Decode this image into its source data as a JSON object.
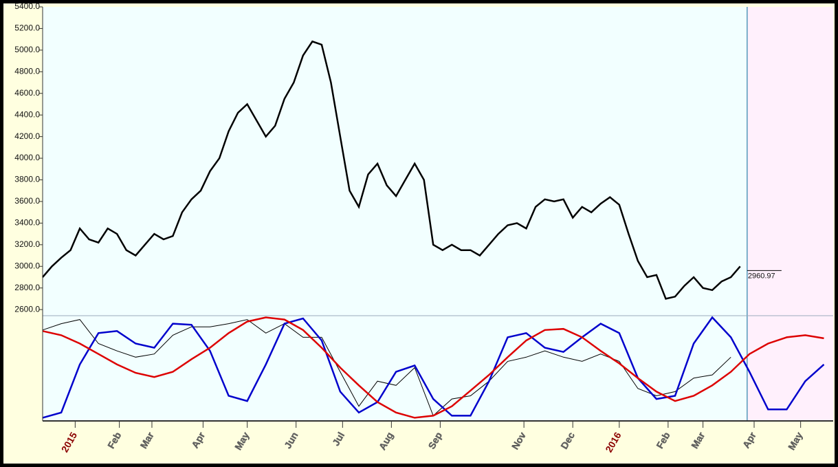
{
  "chart_data": [
    {
      "type": "line",
      "color": "#000000",
      "xlim": [
        0,
        340
      ],
      "ylim": [
        2550,
        5400
      ],
      "yticks": [
        {
          "value": 2600,
          "label": "2600.0"
        },
        {
          "value": 2800,
          "label": "2800.0"
        },
        {
          "value": 3000,
          "label": "3000.0"
        },
        {
          "value": 3200,
          "label": "3200.0"
        },
        {
          "value": 3400,
          "label": "3400.0"
        },
        {
          "value": 3600,
          "label": "3600.0"
        },
        {
          "value": 3800,
          "label": "3800.0"
        },
        {
          "value": 4000,
          "label": "4000.0"
        },
        {
          "value": 4200,
          "label": "4200.0"
        },
        {
          "value": 4400,
          "label": "4400.0"
        },
        {
          "value": 4600,
          "label": "4600.0"
        },
        {
          "value": 4800,
          "label": "4800.0"
        },
        {
          "value": 5000,
          "label": "5000.0"
        },
        {
          "value": 5200,
          "label": "5200.0"
        },
        {
          "value": 5400,
          "label": "5400.0"
        }
      ],
      "x": [
        0,
        4,
        8,
        12,
        16,
        20,
        24,
        28,
        32,
        36,
        40,
        44,
        48,
        52,
        56,
        60,
        64,
        68,
        72,
        76,
        80,
        84,
        88,
        92,
        96,
        100,
        104,
        108,
        112,
        116,
        120,
        124,
        128,
        132,
        136,
        140,
        144,
        148,
        152,
        156,
        160,
        164,
        168,
        172,
        176,
        180,
        184,
        188,
        192,
        196,
        200,
        204,
        208,
        212,
        216,
        220,
        224,
        228,
        232,
        236,
        240,
        244,
        248,
        252,
        256,
        260,
        264,
        268,
        272,
        276,
        280,
        284,
        288,
        292,
        296,
        300
      ],
      "values": [
        2900,
        3000,
        3080,
        3150,
        3350,
        3250,
        3220,
        3350,
        3300,
        3150,
        3100,
        3200,
        3300,
        3250,
        3280,
        3500,
        3620,
        3700,
        3880,
        4000,
        4250,
        4420,
        4500,
        4350,
        4200,
        4300,
        4550,
        4700,
        4950,
        5080,
        5050,
        4700,
        4200,
        3700,
        3550,
        3850,
        3950,
        3750,
        3650,
        3800,
        3950,
        3800,
        3200,
        3150,
        3200,
        3150,
        3150,
        3100,
        3200,
        3300,
        3380,
        3400,
        3350,
        3550,
        3620,
        3600,
        3620,
        3450,
        3550,
        3500,
        3580,
        3640,
        3570,
        3300,
        3050,
        2900,
        2920,
        2700,
        2720,
        2820,
        2900,
        2800,
        2780,
        2860,
        2900,
        3000
      ],
      "last_x": 303,
      "last_value": 2960.97
    },
    {
      "type": "line",
      "xlim": [
        0,
        340
      ],
      "ylim": [
        0,
        100
      ],
      "x": [
        0,
        8,
        16,
        24,
        32,
        40,
        48,
        56,
        64,
        72,
        80,
        88,
        96,
        104,
        112,
        120,
        128,
        136,
        144,
        152,
        160,
        168,
        176,
        184,
        192,
        200,
        208,
        216,
        224,
        232,
        240,
        248,
        256,
        264,
        272,
        280,
        288,
        296,
        304,
        312,
        320,
        328,
        336
      ],
      "xticks": [
        {
          "value": 14,
          "label": "2015"
        },
        {
          "value": 33,
          "label": "Feb"
        },
        {
          "value": 47,
          "label": "Mar"
        },
        {
          "value": 69,
          "label": "Apr"
        },
        {
          "value": 88,
          "label": "May"
        },
        {
          "value": 109,
          "label": "Jun"
        },
        {
          "value": 129,
          "label": "Jul"
        },
        {
          "value": 150,
          "label": "Aug"
        },
        {
          "value": 171,
          "label": "Sep"
        },
        {
          "value": 207,
          "label": "Nov"
        },
        {
          "value": 228,
          "label": "Dec"
        },
        {
          "value": 248,
          "label": "2016"
        },
        {
          "value": 269,
          "label": "Feb"
        },
        {
          "value": 284,
          "label": "Mar"
        },
        {
          "value": 306,
          "label": "Apr"
        },
        {
          "value": 326,
          "label": "May"
        }
      ],
      "series": [
        {
          "color": "#000000",
          "values": [
            87,
            93,
            97,
            74,
            67,
            61,
            64,
            82,
            90,
            90,
            93,
            97,
            84,
            93,
            80,
            80,
            47,
            14,
            38,
            34,
            51,
            5,
            21,
            24,
            38,
            57,
            61,
            67,
            61,
            57,
            64,
            57,
            31,
            24,
            28,
            41,
            44,
            61,
            null,
            null,
            null,
            null,
            null
          ]
        },
        {
          "color": "#0000cc",
          "values": [
            3,
            8,
            54,
            84,
            86,
            74,
            70,
            93,
            92,
            67,
            24,
            19,
            54,
            93,
            98,
            77,
            28,
            8,
            18,
            47,
            53,
            21,
            5,
            5,
            38,
            80,
            84,
            70,
            66,
            80,
            93,
            84,
            41,
            21,
            24,
            74,
            99,
            80,
            47,
            11,
            11,
            38,
            54
          ]
        },
        {
          "color": "#dd0000",
          "values": [
            86,
            82,
            74,
            64,
            54,
            46,
            42,
            47,
            59,
            70,
            84,
            95,
            99,
            97,
            87,
            70,
            51,
            34,
            18,
            8,
            3,
            5,
            14,
            29,
            44,
            61,
            77,
            87,
            88,
            80,
            67,
            55,
            41,
            28,
            19,
            24,
            34,
            47,
            64,
            74,
            80,
            82,
            79
          ]
        }
      ]
    }
  ]
}
